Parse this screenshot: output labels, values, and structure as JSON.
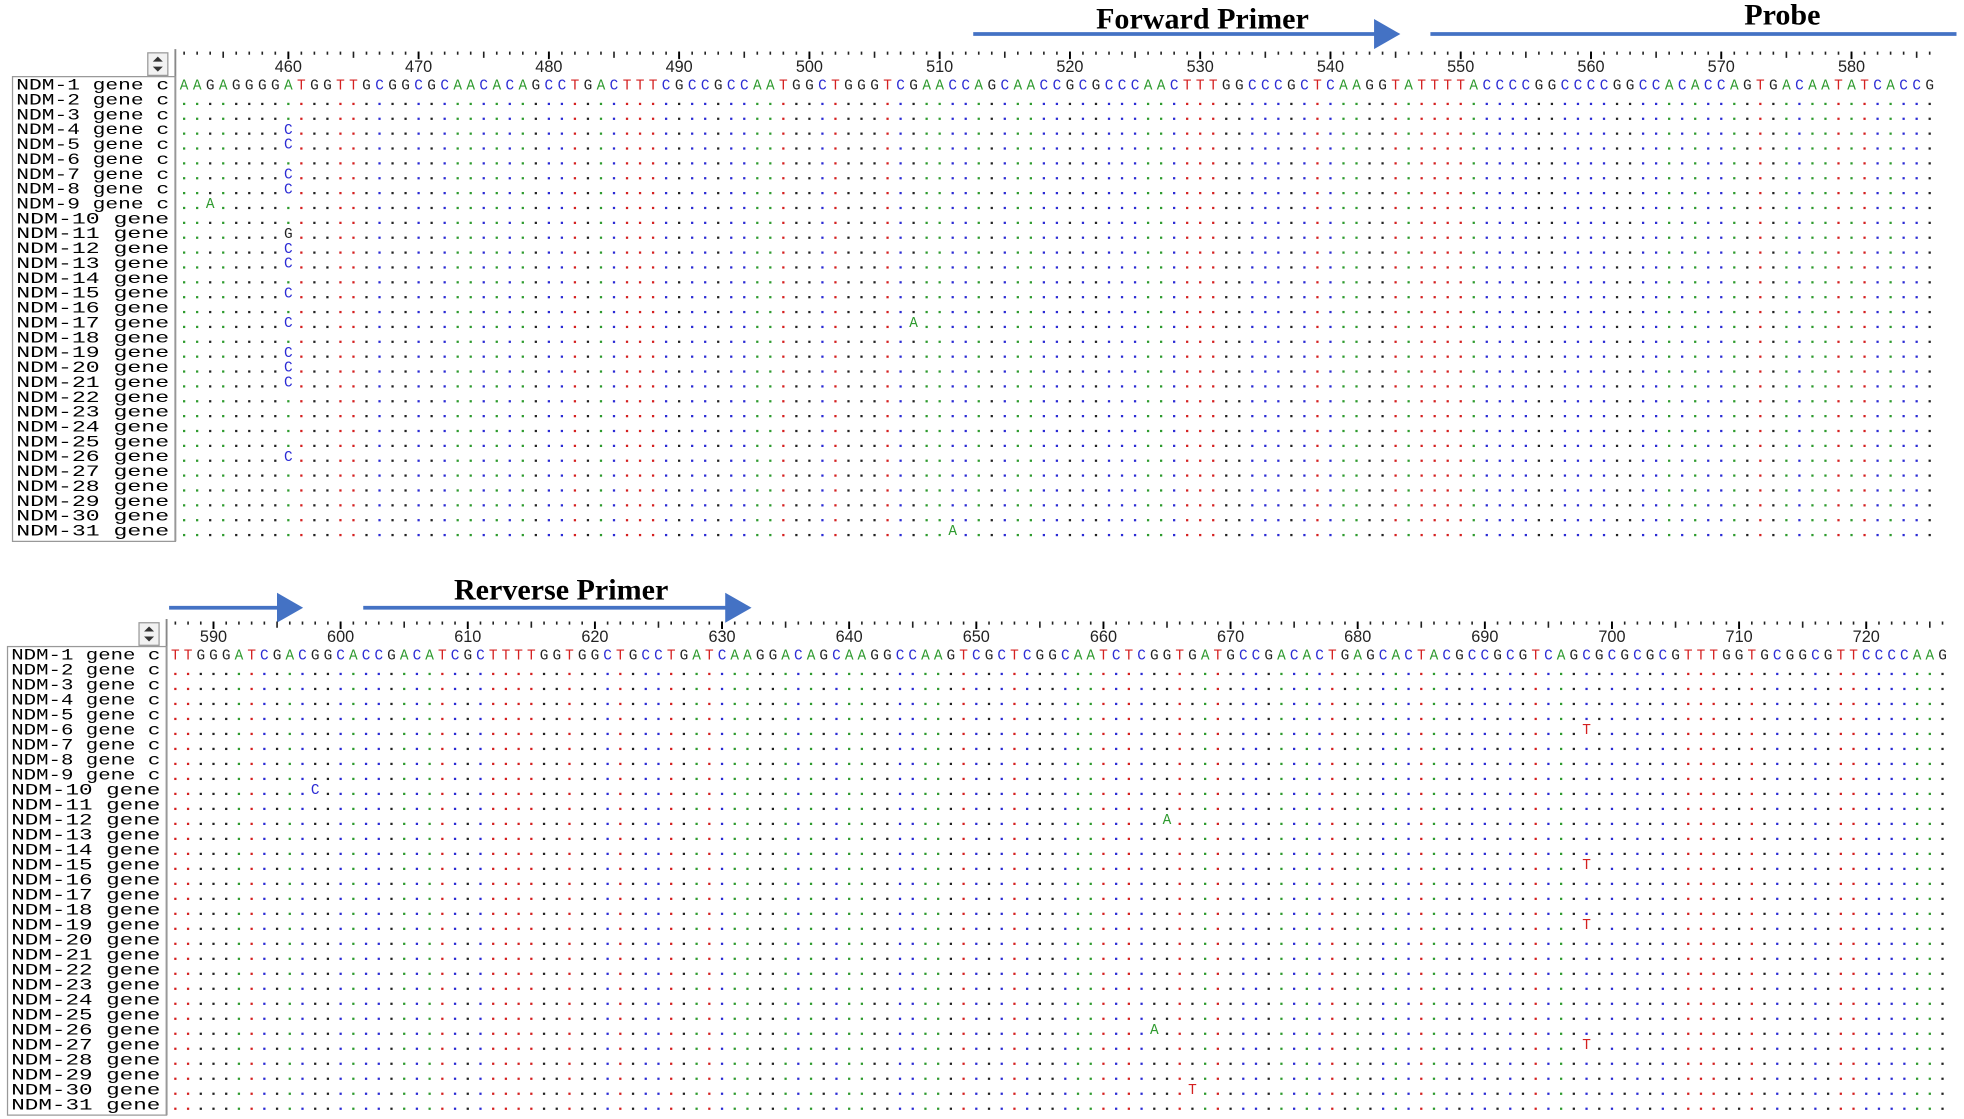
{
  "base_colors": {
    "A": "#2e9a2e",
    "C": "#2b2bd4",
    "G": "#222222",
    "T": "#d42020"
  },
  "panels": [
    {
      "annotations": [
        "Forward Primer",
        "Probe"
      ],
      "ruler_ticks": [
        460,
        470,
        480,
        490,
        500,
        510,
        520,
        530,
        540,
        550,
        560,
        570,
        580
      ],
      "first_position": 452,
      "reference": "AAGAGGGGATGGTTGCGGCGCAACACAGCCTGACTTTCGCCGCCAATGGCTGGGTCGAACCAGCAACCGCGCCCAACTTTGGCCCGCTCAAGGTATTTTACCCCGGCCCCGGCCACACCAGTGACAATATCACCG",
      "rows": [
        {
          "name": "NDM-1 gene c",
          "variants": []
        },
        {
          "name": "NDM-2 gene c",
          "variants": []
        },
        {
          "name": "NDM-3 gene c",
          "variants": []
        },
        {
          "name": "NDM-4 gene c",
          "variants": [
            {
              "position": 460,
              "base": "C"
            }
          ]
        },
        {
          "name": "NDM-5 gene c",
          "variants": [
            {
              "position": 460,
              "base": "C"
            }
          ]
        },
        {
          "name": "NDM-6 gene c",
          "variants": []
        },
        {
          "name": "NDM-7 gene c",
          "variants": [
            {
              "position": 460,
              "base": "C"
            }
          ]
        },
        {
          "name": "NDM-8 gene c",
          "variants": [
            {
              "position": 460,
              "base": "C"
            }
          ]
        },
        {
          "name": "NDM-9 gene c",
          "variants": [
            {
              "position": 454,
              "base": "A"
            }
          ]
        },
        {
          "name": "NDM-10 gene",
          "variants": []
        },
        {
          "name": "NDM-11 gene",
          "variants": [
            {
              "position": 460,
              "base": "G"
            }
          ]
        },
        {
          "name": "NDM-12 gene",
          "variants": [
            {
              "position": 460,
              "base": "C"
            }
          ]
        },
        {
          "name": "NDM-13 gene",
          "variants": [
            {
              "position": 460,
              "base": "C"
            }
          ]
        },
        {
          "name": "NDM-14 gene",
          "variants": []
        },
        {
          "name": "NDM-15 gene",
          "variants": [
            {
              "position": 460,
              "base": "C"
            }
          ]
        },
        {
          "name": "NDM-16 gene",
          "variants": []
        },
        {
          "name": "NDM-17 gene",
          "variants": [
            {
              "position": 460,
              "base": "C"
            },
            {
              "position": 508,
              "base": "A"
            }
          ]
        },
        {
          "name": "NDM-18 gene",
          "variants": []
        },
        {
          "name": "NDM-19 gene",
          "variants": [
            {
              "position": 460,
              "base": "C"
            }
          ]
        },
        {
          "name": "NDM-20 gene",
          "variants": [
            {
              "position": 460,
              "base": "C"
            }
          ]
        },
        {
          "name": "NDM-21 gene",
          "variants": [
            {
              "position": 460,
              "base": "C"
            }
          ]
        },
        {
          "name": "NDM-22 gene",
          "variants": []
        },
        {
          "name": "NDM-23 gene",
          "variants": []
        },
        {
          "name": "NDM-24 gene",
          "variants": []
        },
        {
          "name": "NDM-25 gene",
          "variants": []
        },
        {
          "name": "NDM-26 gene",
          "variants": [
            {
              "position": 460,
              "base": "C"
            }
          ]
        },
        {
          "name": "NDM-27 gene",
          "variants": []
        },
        {
          "name": "NDM-28 gene",
          "variants": []
        },
        {
          "name": "NDM-29 gene",
          "variants": []
        },
        {
          "name": "NDM-30 gene",
          "variants": []
        },
        {
          "name": "NDM-31 gene",
          "variants": [
            {
              "position": 511,
              "base": "A"
            }
          ]
        }
      ]
    },
    {
      "annotations": [
        "Rerverse Primer"
      ],
      "ruler_ticks": [
        590,
        600,
        610,
        620,
        630,
        640,
        650,
        660,
        670,
        680,
        690,
        700,
        710,
        720
      ],
      "first_position": 587,
      "reference": "TTGGGATCGACGGCACCGACATCGCTTTTGGTGGCTGCCTGATCAAGGACAGCAAGGCCAAGTCGCTCGGCAATCTCGGTGATGCCGACACTGAGCACTACGCCGCGTCAGCGCGCGCGTTTGGTGCGGCGTTCCCCAAG",
      "rows": [
        {
          "name": "NDM-1 gene c",
          "variants": []
        },
        {
          "name": "NDM-2 gene c",
          "variants": []
        },
        {
          "name": "NDM-3 gene c",
          "variants": []
        },
        {
          "name": "NDM-4 gene c",
          "variants": []
        },
        {
          "name": "NDM-5 gene c",
          "variants": []
        },
        {
          "name": "NDM-6 gene c",
          "variants": [
            {
              "position": 698,
              "base": "T"
            }
          ]
        },
        {
          "name": "NDM-7 gene c",
          "variants": []
        },
        {
          "name": "NDM-8 gene c",
          "variants": []
        },
        {
          "name": "NDM-9 gene c",
          "variants": []
        },
        {
          "name": "NDM-10 gene",
          "variants": [
            {
              "position": 598,
              "base": "C"
            }
          ]
        },
        {
          "name": "NDM-11 gene",
          "variants": []
        },
        {
          "name": "NDM-12 gene",
          "variants": [
            {
              "position": 665,
              "base": "A"
            }
          ]
        },
        {
          "name": "NDM-13 gene",
          "variants": []
        },
        {
          "name": "NDM-14 gene",
          "variants": []
        },
        {
          "name": "NDM-15 gene",
          "variants": [
            {
              "position": 698,
              "base": "T"
            }
          ]
        },
        {
          "name": "NDM-16 gene",
          "variants": []
        },
        {
          "name": "NDM-17 gene",
          "variants": []
        },
        {
          "name": "NDM-18 gene",
          "variants": []
        },
        {
          "name": "NDM-19 gene",
          "variants": [
            {
              "position": 698,
              "base": "T"
            }
          ]
        },
        {
          "name": "NDM-20 gene",
          "variants": []
        },
        {
          "name": "NDM-21 gene",
          "variants": []
        },
        {
          "name": "NDM-22 gene",
          "variants": []
        },
        {
          "name": "NDM-23 gene",
          "variants": []
        },
        {
          "name": "NDM-24 gene",
          "variants": []
        },
        {
          "name": "NDM-25 gene",
          "variants": []
        },
        {
          "name": "NDM-26 gene",
          "variants": [
            {
              "position": 664,
              "base": "A"
            }
          ]
        },
        {
          "name": "NDM-27 gene",
          "variants": [
            {
              "position": 698,
              "base": "T"
            }
          ]
        },
        {
          "name": "NDM-28 gene",
          "variants": []
        },
        {
          "name": "NDM-29 gene",
          "variants": []
        },
        {
          "name": "NDM-30 gene",
          "variants": [
            {
              "position": 667,
              "base": "T"
            }
          ]
        },
        {
          "name": "NDM-31 gene",
          "variants": []
        }
      ]
    }
  ]
}
